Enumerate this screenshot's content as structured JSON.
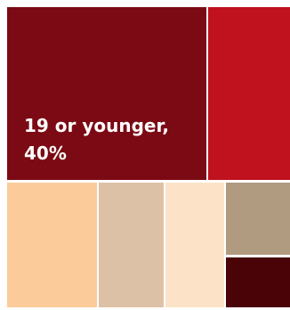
{
  "chart_data": {
    "type": "treemap",
    "title": "",
    "tiles": [
      {
        "label_line1": "19 or younger,",
        "label_line2": "40%",
        "value": 40,
        "color": "#7B0A14",
        "label_color": "#ffffff"
      },
      {
        "label_line1": "",
        "label_line2": "",
        "value": 15,
        "color": "#C0111E",
        "label_color": "#ffffff"
      },
      {
        "label_line1": "",
        "label_line2": "",
        "value": null,
        "color": "#FBCB9A",
        "label_color": "#ffffff"
      },
      {
        "label_line1": "",
        "label_line2": "",
        "value": null,
        "color": "#DDC1A6",
        "label_color": "#ffffff"
      },
      {
        "label_line1": "",
        "label_line2": "",
        "value": null,
        "color": "#FCE3C8",
        "label_color": "#ffffff"
      },
      {
        "label_line1": "",
        "label_line2": "",
        "value": null,
        "color": "#B09A80",
        "label_color": "#ffffff"
      },
      {
        "label_line1": "",
        "label_line2": "",
        "value": null,
        "color": "#4A0307",
        "label_color": "#ffffff"
      }
    ]
  }
}
